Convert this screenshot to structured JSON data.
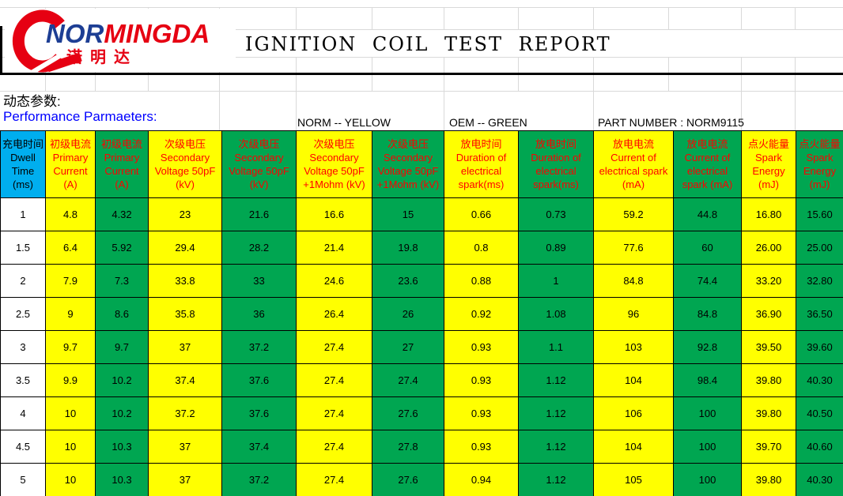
{
  "colors": {
    "norm_yellow": "#FFFF00",
    "oem_green": "#00A651",
    "dwell_blue": "#00AEEF",
    "header_text_red": "#FF0000",
    "param_label_blue": "#0000FF",
    "logo_red": "#E60012",
    "logo_blue": "#1D3E94"
  },
  "logo": {
    "brand_prefix": "NOR",
    "brand_suffix": "MINGDA",
    "brand_cn": "诺明达"
  },
  "header": {
    "title": "IGNITION COIL TEST REPORT"
  },
  "params": {
    "label_cn": "动态参数:",
    "label_en": "Performance Parmaeters:",
    "norm_legend": "NORM -- YELLOW",
    "oem_legend": "OEM -- GREEN",
    "part_number": "PART NUMBER : NORM9115"
  },
  "table": {
    "columns": [
      {
        "label": "充电时间Dwell Time (ms)",
        "scheme": "dwell"
      },
      {
        "label": "初级电流 Primary Current (A)",
        "scheme": "norm"
      },
      {
        "label": "初级电流 Primary Current (A)",
        "scheme": "oem"
      },
      {
        "label": "次级电压 Secondary Voltage 50pF (kV)",
        "scheme": "norm"
      },
      {
        "label": "次级电压 Secondary Voltage 50pF (kV)",
        "scheme": "oem"
      },
      {
        "label": "次级电压 Secondary Voltage 50pF +1Mohm (kV)",
        "scheme": "norm"
      },
      {
        "label": "次级电压 Secondary Voltage 50pF +1Mohm (kV)",
        "scheme": "oem"
      },
      {
        "label": "放电时间 Duration of electrical spark(ms)",
        "scheme": "norm"
      },
      {
        "label": "放电时间 Duration of electrical spark(ms)",
        "scheme": "oem"
      },
      {
        "label": "放电电流 Current of electrical spark (mA)",
        "scheme": "norm"
      },
      {
        "label": "放电电流 Current of electrical spark (mA)",
        "scheme": "oem"
      },
      {
        "label": "点火能量 Spark Energy (mJ)",
        "scheme": "norm"
      },
      {
        "label": "点火能量 Spark Energy (mJ)",
        "scheme": "oem"
      }
    ],
    "rows": [
      {
        "dwell": "1",
        "values": [
          "4.8",
          "4.32",
          "23",
          "21.6",
          "16.6",
          "15",
          "0.66",
          "0.73",
          "59.2",
          "44.8",
          "16.80",
          "15.60"
        ]
      },
      {
        "dwell": "1.5",
        "values": [
          "6.4",
          "5.92",
          "29.4",
          "28.2",
          "21.4",
          "19.8",
          "0.8",
          "0.89",
          "77.6",
          "60",
          "26.00",
          "25.00"
        ]
      },
      {
        "dwell": "2",
        "values": [
          "7.9",
          "7.3",
          "33.8",
          "33",
          "24.6",
          "23.6",
          "0.88",
          "1",
          "84.8",
          "74.4",
          "33.20",
          "32.80"
        ]
      },
      {
        "dwell": "2.5",
        "values": [
          "9",
          "8.6",
          "35.8",
          "36",
          "26.4",
          "26",
          "0.92",
          "1.08",
          "96",
          "84.8",
          "36.90",
          "36.50"
        ]
      },
      {
        "dwell": "3",
        "values": [
          "9.7",
          "9.7",
          "37",
          "37.2",
          "27.4",
          "27",
          "0.93",
          "1.1",
          "103",
          "92.8",
          "39.50",
          "39.60"
        ]
      },
      {
        "dwell": "3.5",
        "values": [
          "9.9",
          "10.2",
          "37.4",
          "37.6",
          "27.4",
          "27.4",
          "0.93",
          "1.12",
          "104",
          "98.4",
          "39.80",
          "40.30"
        ]
      },
      {
        "dwell": "4",
        "values": [
          "10",
          "10.2",
          "37.2",
          "37.6",
          "27.4",
          "27.6",
          "0.93",
          "1.12",
          "106",
          "100",
          "39.80",
          "40.50"
        ]
      },
      {
        "dwell": "4.5",
        "values": [
          "10",
          "10.3",
          "37",
          "37.4",
          "27.4",
          "27.8",
          "0.93",
          "1.12",
          "104",
          "100",
          "39.70",
          "40.60"
        ]
      },
      {
        "dwell": "5",
        "values": [
          "10",
          "10.3",
          "37",
          "37.2",
          "27.4",
          "27.6",
          "0.94",
          "1.12",
          "105",
          "100",
          "39.80",
          "40.30"
        ]
      }
    ]
  }
}
